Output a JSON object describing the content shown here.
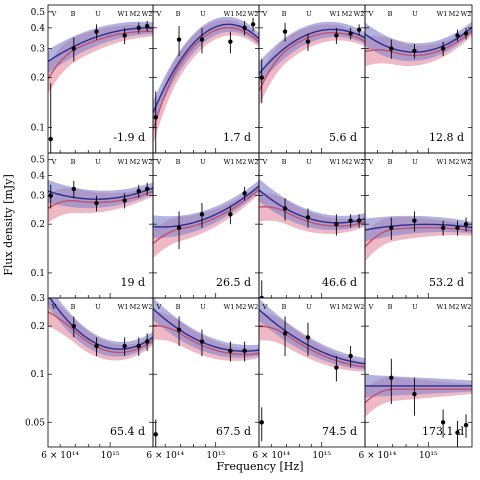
{
  "figure": {
    "xlabel": "Frequency [Hz]",
    "ylabel": "Flux density [mJy]",
    "x_tick_labels": [
      "6 × 10¹⁴",
      "10¹⁵"
    ],
    "filters": [
      "V",
      "B",
      "U",
      "W1",
      "M2",
      "W2"
    ],
    "colors": {
      "blue_band": "#8888cc",
      "blue_line": "#2b2b8f",
      "red_band": "#e8a0b0",
      "red_line": "#c0506e"
    }
  },
  "chart_data": [
    {
      "type": "scatter",
      "epoch": "-1.9 d",
      "xscale": "log",
      "yscale": "log",
      "ylim": [
        0.07,
        0.55
      ],
      "yticks": [
        "0.1",
        "0.2",
        "0.3",
        "0.4",
        "0.5"
      ],
      "points": [
        {
          "x": 545000000000000.0,
          "y": 0.085,
          "yerr": [
            0.02,
            0.1
          ]
        },
        {
          "x": 690000000000000.0,
          "y": 0.3,
          "yerr": [
            0.05,
            0.05
          ]
        },
        {
          "x": 870000000000000.0,
          "y": 0.38,
          "yerr": [
            0.04,
            0.04
          ]
        },
        {
          "x": 1160000000000000.0,
          "y": 0.36,
          "yerr": [
            0.04,
            0.04
          ]
        },
        {
          "x": 1340000000000000.0,
          "y": 0.4,
          "yerr": [
            0.03,
            0.03
          ]
        },
        {
          "x": 1460000000000000.0,
          "y": 0.41,
          "yerr": [
            0.03,
            0.03
          ]
        }
      ]
    },
    {
      "type": "scatter",
      "epoch": "1.7 d",
      "xscale": "log",
      "yscale": "log",
      "ylim": [
        0.07,
        0.55
      ],
      "yticks": [
        "0.1",
        "0.2",
        "0.3",
        "0.4",
        "0.5"
      ],
      "points": [
        {
          "x": 545000000000000.0,
          "y": 0.115,
          "yerr": [
            0.05,
            0.05
          ]
        },
        {
          "x": 690000000000000.0,
          "y": 0.34,
          "yerr": [
            0.07,
            0.07
          ]
        },
        {
          "x": 870000000000000.0,
          "y": 0.34,
          "yerr": [
            0.06,
            0.06
          ]
        },
        {
          "x": 1160000000000000.0,
          "y": 0.33,
          "yerr": [
            0.05,
            0.05
          ]
        },
        {
          "x": 1340000000000000.0,
          "y": 0.4,
          "yerr": [
            0.04,
            0.04
          ]
        },
        {
          "x": 1460000000000000.0,
          "y": 0.42,
          "yerr": [
            0.04,
            0.04
          ]
        }
      ]
    },
    {
      "type": "scatter",
      "epoch": "5.6 d",
      "xscale": "log",
      "yscale": "log",
      "ylim": [
        0.07,
        0.55
      ],
      "yticks": [
        "0.1",
        "0.2",
        "0.3",
        "0.4",
        "0.5"
      ],
      "points": [
        {
          "x": 545000000000000.0,
          "y": 0.2,
          "yerr": [
            0.06,
            0.06
          ]
        },
        {
          "x": 690000000000000.0,
          "y": 0.38,
          "yerr": [
            0.05,
            0.05
          ]
        },
        {
          "x": 870000000000000.0,
          "y": 0.33,
          "yerr": [
            0.04,
            0.04
          ]
        },
        {
          "x": 1160000000000000.0,
          "y": 0.36,
          "yerr": [
            0.04,
            0.04
          ]
        },
        {
          "x": 1340000000000000.0,
          "y": 0.37,
          "yerr": [
            0.03,
            0.03
          ]
        },
        {
          "x": 1460000000000000.0,
          "y": 0.39,
          "yerr": [
            0.03,
            0.03
          ]
        }
      ]
    },
    {
      "type": "scatter",
      "epoch": "12.8 d",
      "xscale": "log",
      "yscale": "log",
      "ylim": [
        0.07,
        0.55
      ],
      "yticks": [
        "0.1",
        "0.2",
        "0.3",
        "0.4",
        "0.5"
      ],
      "points": [
        {
          "x": 690000000000000.0,
          "y": 0.3,
          "yerr": [
            0.04,
            0.04
          ]
        },
        {
          "x": 870000000000000.0,
          "y": 0.29,
          "yerr": [
            0.03,
            0.03
          ]
        },
        {
          "x": 1160000000000000.0,
          "y": 0.3,
          "yerr": [
            0.03,
            0.03
          ]
        },
        {
          "x": 1340000000000000.0,
          "y": 0.36,
          "yerr": [
            0.03,
            0.03
          ]
        },
        {
          "x": 1460000000000000.0,
          "y": 0.37,
          "yerr": [
            0.03,
            0.03
          ]
        }
      ]
    },
    {
      "type": "scatter",
      "epoch": "19 d",
      "xscale": "log",
      "yscale": "log",
      "ylim": [
        0.07,
        0.55
      ],
      "yticks": [
        "0.1",
        "0.2",
        "0.3",
        "0.4",
        "0.5"
      ],
      "points": [
        {
          "x": 545000000000000.0,
          "y": 0.3,
          "yerr": [
            0.05,
            0.05
          ]
        },
        {
          "x": 690000000000000.0,
          "y": 0.33,
          "yerr": [
            0.04,
            0.04
          ]
        },
        {
          "x": 870000000000000.0,
          "y": 0.27,
          "yerr": [
            0.03,
            0.03
          ]
        },
        {
          "x": 1160000000000000.0,
          "y": 0.28,
          "yerr": [
            0.03,
            0.03
          ]
        },
        {
          "x": 1340000000000000.0,
          "y": 0.32,
          "yerr": [
            0.03,
            0.03
          ]
        },
        {
          "x": 1460000000000000.0,
          "y": 0.33,
          "yerr": [
            0.03,
            0.03
          ]
        }
      ]
    },
    {
      "type": "scatter",
      "epoch": "26.5 d",
      "xscale": "log",
      "yscale": "log",
      "ylim": [
        0.07,
        0.55
      ],
      "yticks": [
        "0.1",
        "0.2",
        "0.3",
        "0.4",
        "0.5"
      ],
      "points": [
        {
          "x": 690000000000000.0,
          "y": 0.19,
          "yerr": [
            0.05,
            0.05
          ]
        },
        {
          "x": 870000000000000.0,
          "y": 0.23,
          "yerr": [
            0.04,
            0.04
          ]
        },
        {
          "x": 1160000000000000.0,
          "y": 0.23,
          "yerr": [
            0.03,
            0.03
          ]
        },
        {
          "x": 1340000000000000.0,
          "y": 0.31,
          "yerr": [
            0.03,
            0.03
          ]
        }
      ]
    },
    {
      "type": "scatter",
      "epoch": "46.6 d",
      "xscale": "log",
      "yscale": "log",
      "ylim": [
        0.07,
        0.55
      ],
      "yticks": [
        "0.1",
        "0.2",
        "0.3",
        "0.4",
        "0.5"
      ],
      "points": [
        {
          "x": 545000000000000.0,
          "y": 0.07,
          "yerr": [
            0.02,
            0.02
          ]
        },
        {
          "x": 690000000000000.0,
          "y": 0.25,
          "yerr": [
            0.04,
            0.04
          ]
        },
        {
          "x": 870000000000000.0,
          "y": 0.22,
          "yerr": [
            0.03,
            0.03
          ]
        },
        {
          "x": 1160000000000000.0,
          "y": 0.2,
          "yerr": [
            0.03,
            0.03
          ]
        },
        {
          "x": 1340000000000000.0,
          "y": 0.21,
          "yerr": [
            0.02,
            0.02
          ]
        },
        {
          "x": 1460000000000000.0,
          "y": 0.21,
          "yerr": [
            0.02,
            0.02
          ]
        }
      ]
    },
    {
      "type": "scatter",
      "epoch": "53.2 d",
      "xscale": "log",
      "yscale": "log",
      "ylim": [
        0.07,
        0.55
      ],
      "yticks": [
        "0.1",
        "0.2",
        "0.3",
        "0.4",
        "0.5"
      ],
      "points": [
        {
          "x": 690000000000000.0,
          "y": 0.19,
          "yerr": [
            0.03,
            0.03
          ]
        },
        {
          "x": 870000000000000.0,
          "y": 0.21,
          "yerr": [
            0.03,
            0.03
          ]
        },
        {
          "x": 1160000000000000.0,
          "y": 0.19,
          "yerr": [
            0.02,
            0.02
          ]
        },
        {
          "x": 1340000000000000.0,
          "y": 0.19,
          "yerr": [
            0.02,
            0.02
          ]
        },
        {
          "x": 1460000000000000.0,
          "y": 0.2,
          "yerr": [
            0.02,
            0.02
          ]
        }
      ]
    },
    {
      "type": "scatter",
      "epoch": "65.4 d",
      "xscale": "log",
      "yscale": "log",
      "ylim": [
        0.035,
        0.3
      ],
      "yticks": [
        "0.05",
        "0.1",
        "0.2",
        "0.3"
      ],
      "points": [
        {
          "x": 690000000000000.0,
          "y": 0.2,
          "yerr": [
            0.03,
            0.03
          ]
        },
        {
          "x": 870000000000000.0,
          "y": 0.15,
          "yerr": [
            0.02,
            0.02
          ]
        },
        {
          "x": 1160000000000000.0,
          "y": 0.15,
          "yerr": [
            0.02,
            0.02
          ]
        },
        {
          "x": 1340000000000000.0,
          "y": 0.15,
          "yerr": [
            0.02,
            0.02
          ]
        },
        {
          "x": 1460000000000000.0,
          "y": 0.16,
          "yerr": [
            0.02,
            0.02
          ]
        }
      ]
    },
    {
      "type": "scatter",
      "epoch": "67.5 d",
      "xscale": "log",
      "yscale": "log",
      "ylim": [
        0.035,
        0.3
      ],
      "yticks": [
        "0.05",
        "0.1",
        "0.2",
        "0.3"
      ],
      "points": [
        {
          "x": 545000000000000.0,
          "y": 0.042,
          "yerr": [
            0.01,
            0.01
          ]
        },
        {
          "x": 690000000000000.0,
          "y": 0.19,
          "yerr": [
            0.04,
            0.04
          ]
        },
        {
          "x": 870000000000000.0,
          "y": 0.16,
          "yerr": [
            0.03,
            0.03
          ]
        },
        {
          "x": 1160000000000000.0,
          "y": 0.14,
          "yerr": [
            0.02,
            0.02
          ]
        },
        {
          "x": 1340000000000000.0,
          "y": 0.14,
          "yerr": [
            0.02,
            0.02
          ]
        }
      ]
    },
    {
      "type": "scatter",
      "epoch": "74.5 d",
      "xscale": "log",
      "yscale": "log",
      "ylim": [
        0.035,
        0.3
      ],
      "yticks": [
        "0.05",
        "0.1",
        "0.2",
        "0.3"
      ],
      "points": [
        {
          "x": 545000000000000.0,
          "y": 0.05,
          "yerr": [
            0.012,
            0.012
          ]
        },
        {
          "x": 690000000000000.0,
          "y": 0.18,
          "yerr": [
            0.05,
            0.05
          ]
        },
        {
          "x": 870000000000000.0,
          "y": 0.17,
          "yerr": [
            0.04,
            0.04
          ]
        },
        {
          "x": 1160000000000000.0,
          "y": 0.11,
          "yerr": [
            0.02,
            0.02
          ]
        },
        {
          "x": 1340000000000000.0,
          "y": 0.13,
          "yerr": [
            0.02,
            0.02
          ]
        }
      ]
    },
    {
      "type": "scatter",
      "epoch": "173.1 d",
      "xscale": "log",
      "yscale": "log",
      "ylim": [
        0.035,
        0.3
      ],
      "yticks": [
        "0.05",
        "0.1",
        "0.2",
        "0.3"
      ],
      "points": [
        {
          "x": 690000000000000.0,
          "y": 0.095,
          "yerr": [
            0.03,
            0.03
          ]
        },
        {
          "x": 870000000000000.0,
          "y": 0.075,
          "yerr": [
            0.02,
            0.02
          ]
        },
        {
          "x": 1160000000000000.0,
          "y": 0.05,
          "yerr": [
            0.01,
            0.01
          ]
        },
        {
          "x": 1340000000000000.0,
          "y": 0.043,
          "yerr": [
            0.008,
            0.008
          ]
        },
        {
          "x": 1460000000000000.0,
          "y": 0.048,
          "yerr": [
            0.008,
            0.008
          ]
        }
      ]
    }
  ]
}
